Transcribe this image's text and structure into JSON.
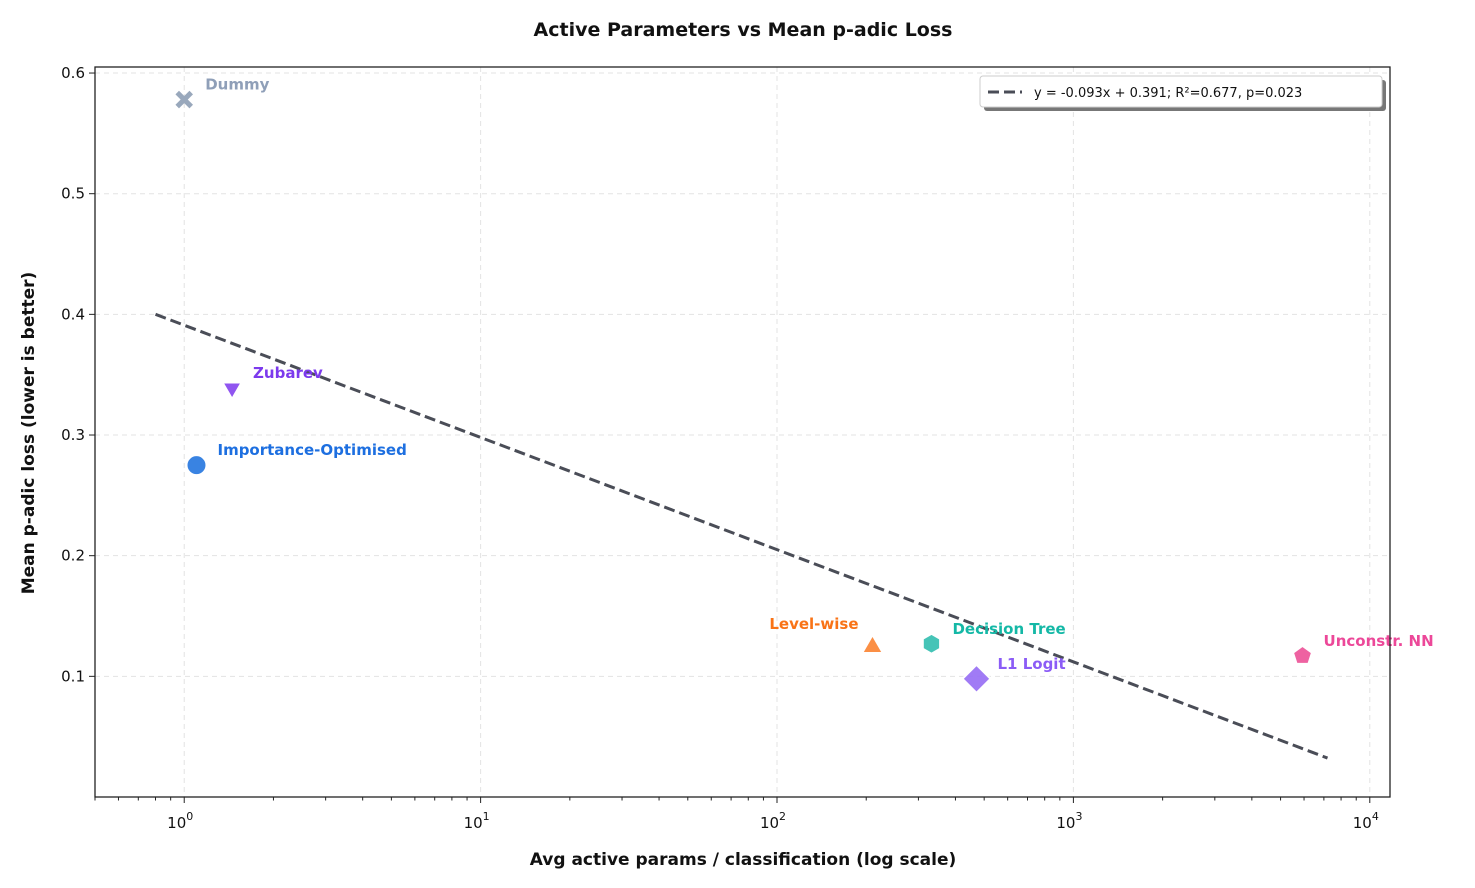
{
  "chart_data": {
    "type": "scatter",
    "title": "Active Parameters vs Mean p-adic Loss",
    "xlabel": "Avg active params / classification (log scale)",
    "ylabel": "Mean p-adic loss (lower is better)",
    "xscale": "log",
    "xlim": [
      0.5,
      11700
    ],
    "ylim": [
      0.0,
      0.605
    ],
    "xticks": [
      {
        "value": 1,
        "label": "10",
        "exp": "0"
      },
      {
        "value": 10,
        "label": "10",
        "exp": "1"
      },
      {
        "value": 100,
        "label": "10",
        "exp": "2"
      },
      {
        "value": 1000,
        "label": "10",
        "exp": "3"
      },
      {
        "value": 10000,
        "label": "10",
        "exp": "4"
      }
    ],
    "yticks": [
      0.1,
      0.2,
      0.3,
      0.4,
      0.5,
      0.6
    ],
    "grid": true,
    "legend_placement": "top-right",
    "points": [
      {
        "label": "Dummy",
        "x": 1.0,
        "y": 0.578,
        "marker": "x",
        "color": "#94a3b8",
        "label_color": "#8f9fb8"
      },
      {
        "label": "Zubarev",
        "x": 1.45,
        "y": 0.339,
        "marker": "triangle-down",
        "color": "#8b4cf0",
        "label_color": "#7c3aed"
      },
      {
        "label": "Importance-Optimised",
        "x": 1.1,
        "y": 0.275,
        "marker": "circle",
        "color": "#2f7de1",
        "label_color": "#1d6fe0"
      },
      {
        "label": "Level-wise",
        "x": 210,
        "y": 0.126,
        "marker": "triangle-up",
        "color": "#fb8a3c",
        "label_color": "#f97316"
      },
      {
        "label": "Decision Tree",
        "x": 332,
        "y": 0.127,
        "marker": "hexagon",
        "color": "#3cc1b4",
        "label_color": "#14b8a6"
      },
      {
        "label": "L1 Logit",
        "x": 471,
        "y": 0.098,
        "marker": "diamond",
        "color": "#9b74f5",
        "label_color": "#8b5cf6"
      },
      {
        "label": "Unconstr. NN",
        "x": 5930,
        "y": 0.117,
        "marker": "pentagon",
        "color": "#ee5a9d",
        "label_color": "#ec4899"
      }
    ],
    "trendline": {
      "slope": -0.093,
      "intercept": 0.391,
      "x_range": [
        0.8,
        7200
      ],
      "legend_label": "y = -0.093x + 0.391; R²=0.677, p=0.023",
      "color": "#4a4d57",
      "style": "dashed"
    }
  }
}
